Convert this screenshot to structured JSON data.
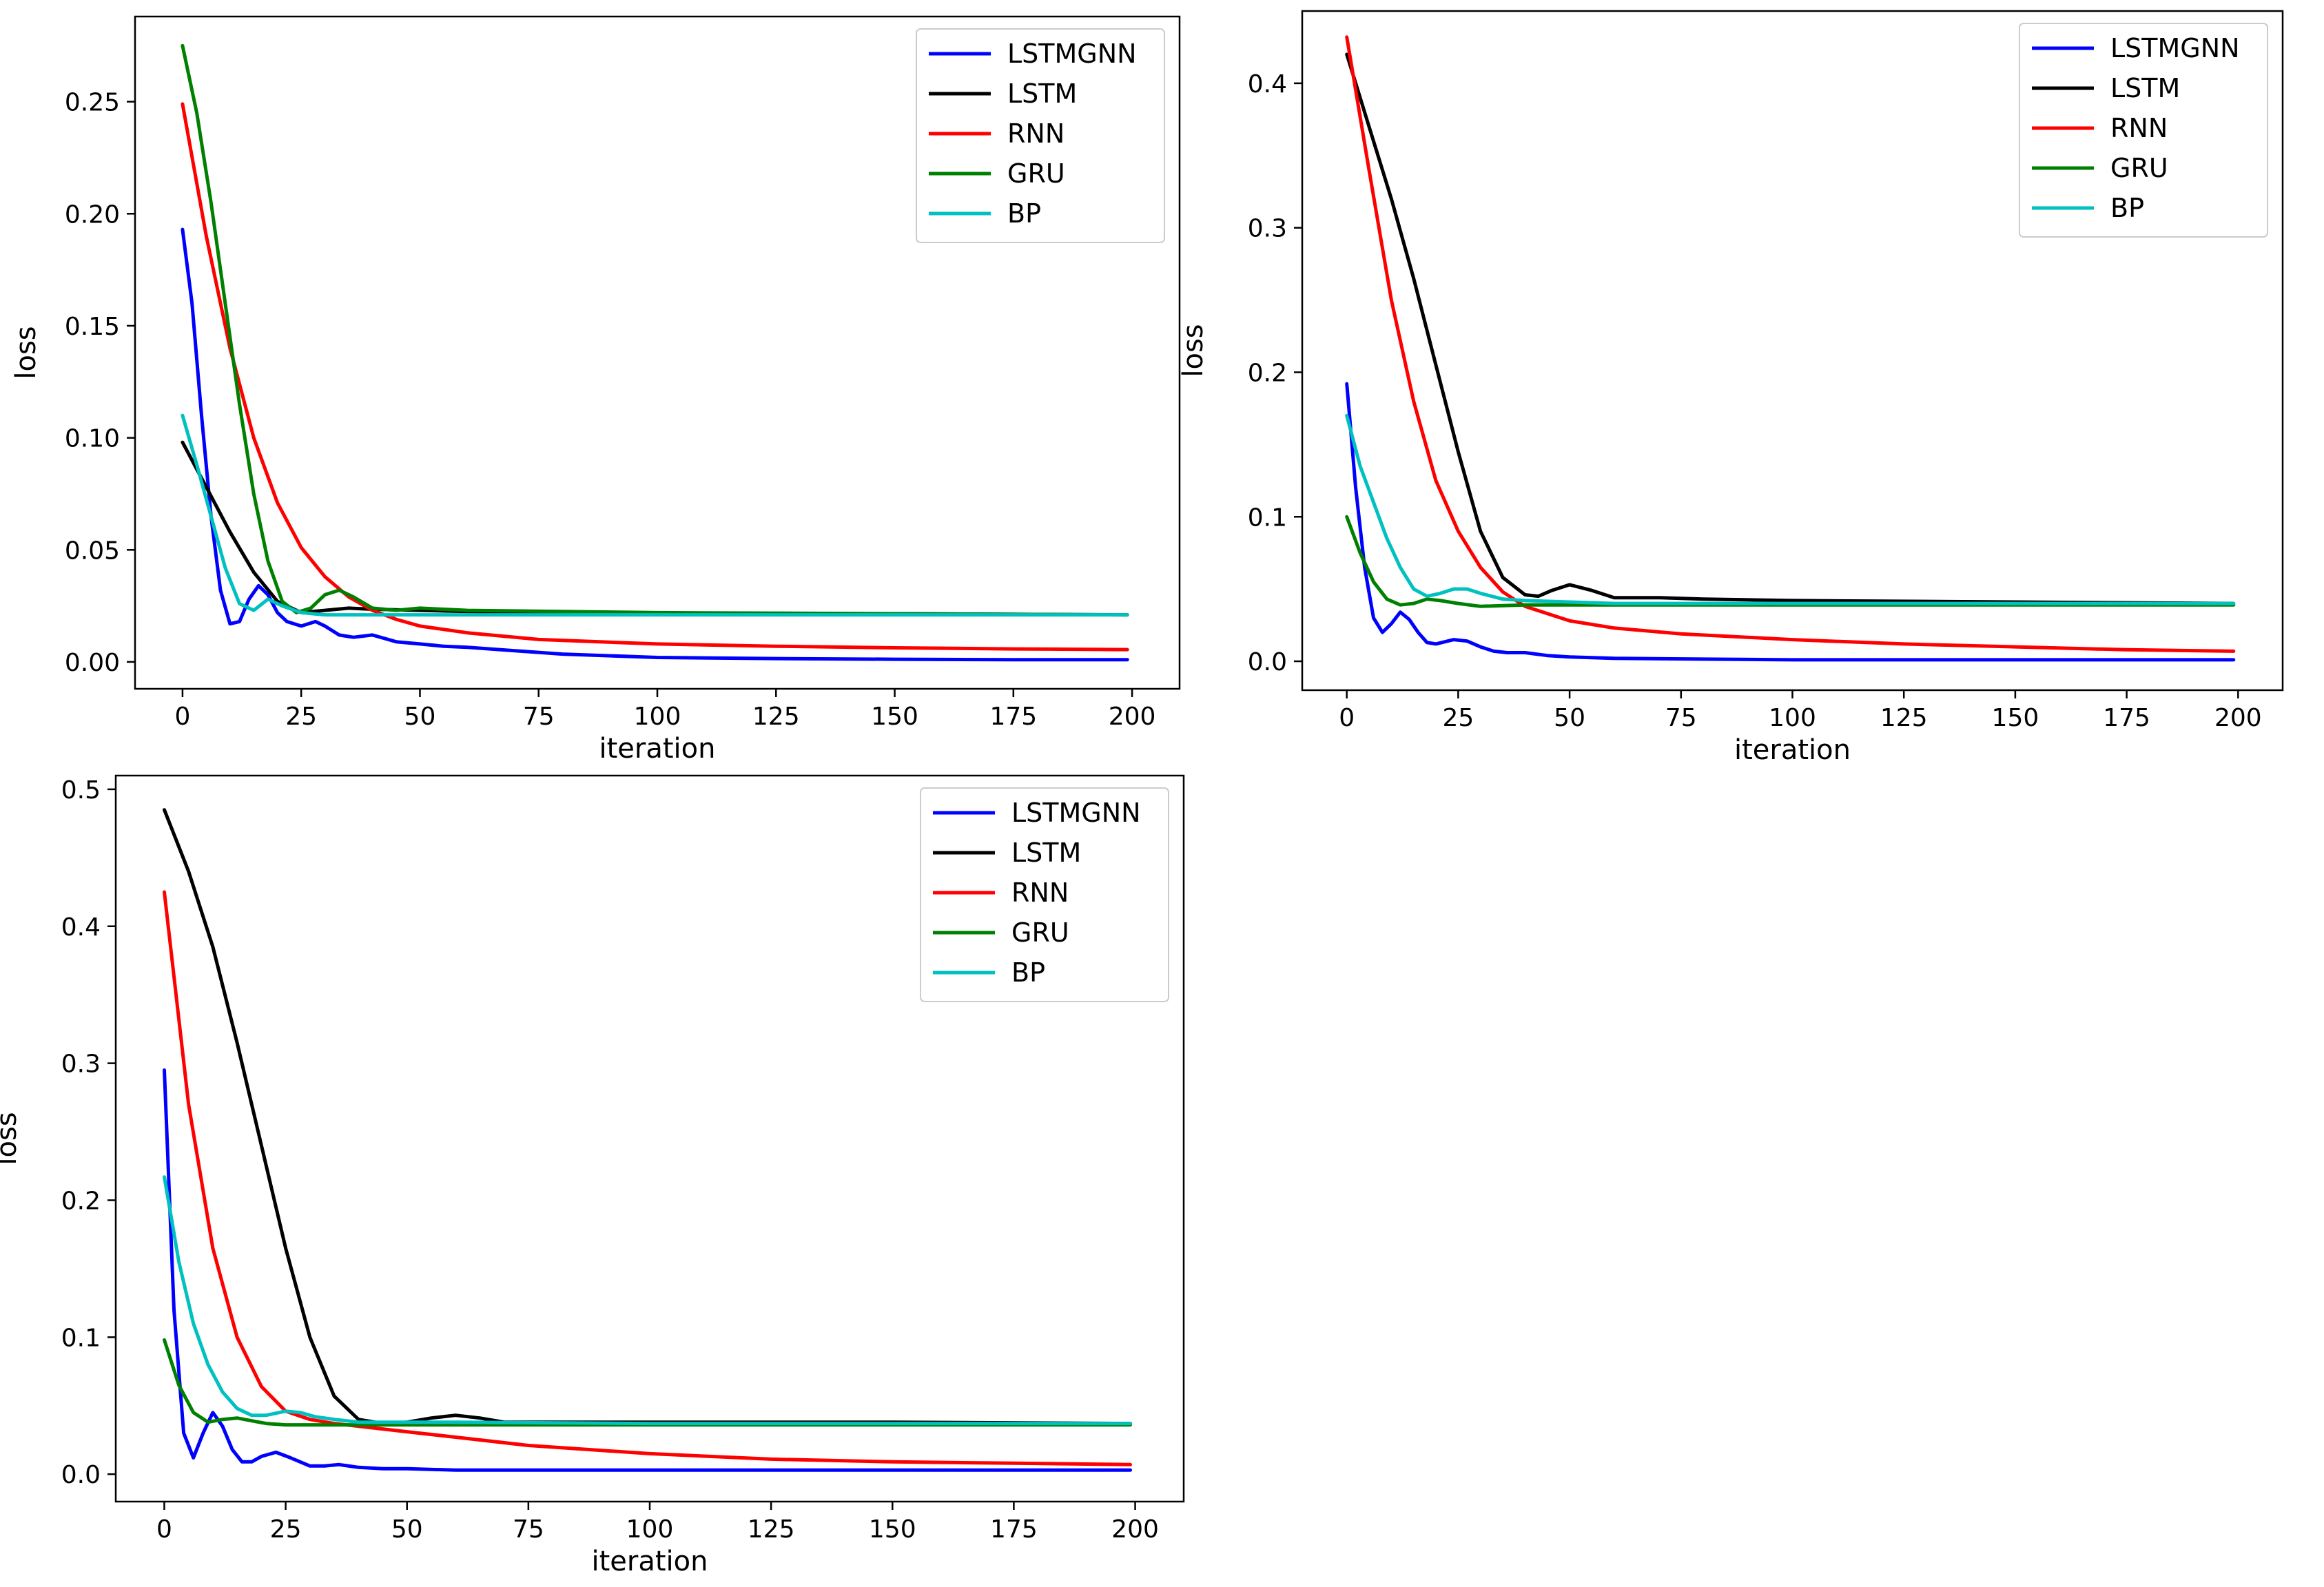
{
  "chart_data": [
    {
      "type": "line",
      "xlabel": "iteration",
      "ylabel": "loss",
      "xlim": [
        -10,
        210
      ],
      "ylim": [
        -0.012,
        0.288
      ],
      "xticks": [
        0,
        25,
        50,
        75,
        100,
        125,
        150,
        175,
        200
      ],
      "yticks": [
        0.0,
        0.05,
        0.1,
        0.15,
        0.2,
        0.25
      ],
      "ytick_labels": [
        "0.00",
        "0.05",
        "0.10",
        "0.15",
        "0.20",
        "0.25"
      ],
      "legend_position": "top-right",
      "series": [
        {
          "name": "LSTMGNN",
          "color": "#0000ff",
          "x": [
            0,
            2,
            4,
            6,
            8,
            10,
            12,
            14,
            16,
            18,
            20,
            22,
            25,
            28,
            30,
            33,
            36,
            40,
            45,
            50,
            55,
            60,
            70,
            80,
            100,
            125,
            150,
            175,
            199
          ],
          "y": [
            0.193,
            0.16,
            0.11,
            0.065,
            0.032,
            0.017,
            0.018,
            0.028,
            0.034,
            0.03,
            0.022,
            0.018,
            0.016,
            0.018,
            0.016,
            0.012,
            0.011,
            0.012,
            0.009,
            0.008,
            0.007,
            0.0065,
            0.005,
            0.0035,
            0.002,
            0.0015,
            0.0012,
            0.001,
            0.001
          ]
        },
        {
          "name": "LSTM",
          "color": "#000000",
          "x": [
            0,
            5,
            10,
            15,
            20,
            25,
            30,
            35,
            40,
            50,
            60,
            80,
            100,
            150,
            199
          ],
          "y": [
            0.098,
            0.078,
            0.058,
            0.04,
            0.027,
            0.022,
            0.023,
            0.024,
            0.0235,
            0.023,
            0.0225,
            0.022,
            0.0215,
            0.0215,
            0.021
          ]
        },
        {
          "name": "RNN",
          "color": "#ff0000",
          "x": [
            0,
            5,
            10,
            15,
            20,
            25,
            30,
            35,
            40,
            45,
            50,
            60,
            75,
            100,
            125,
            150,
            175,
            199
          ],
          "y": [
            0.249,
            0.19,
            0.14,
            0.1,
            0.071,
            0.051,
            0.038,
            0.029,
            0.023,
            0.019,
            0.016,
            0.013,
            0.01,
            0.008,
            0.007,
            0.0063,
            0.0058,
            0.0055
          ]
        },
        {
          "name": "GRU",
          "color": "#008000",
          "x": [
            0,
            3,
            6,
            9,
            12,
            15,
            18,
            21,
            24,
            27,
            30,
            33,
            36,
            40,
            45,
            50,
            55,
            60,
            80,
            100,
            150,
            199
          ],
          "y": [
            0.275,
            0.245,
            0.205,
            0.16,
            0.115,
            0.075,
            0.045,
            0.027,
            0.022,
            0.024,
            0.03,
            0.032,
            0.029,
            0.024,
            0.023,
            0.024,
            0.0235,
            0.023,
            0.0225,
            0.022,
            0.0215,
            0.021
          ]
        },
        {
          "name": "BP",
          "color": "#00c0c0",
          "x": [
            0,
            3,
            6,
            9,
            12,
            15,
            18,
            21,
            25,
            30,
            40,
            60,
            100,
            150,
            199
          ],
          "y": [
            0.11,
            0.088,
            0.065,
            0.042,
            0.026,
            0.023,
            0.028,
            0.025,
            0.022,
            0.021,
            0.021,
            0.021,
            0.021,
            0.021,
            0.021
          ]
        }
      ]
    },
    {
      "type": "line",
      "xlabel": "iteration",
      "ylabel": "loss",
      "xlim": [
        -10,
        210
      ],
      "ylim": [
        -0.02,
        0.45
      ],
      "xticks": [
        0,
        25,
        50,
        75,
        100,
        125,
        150,
        175,
        200
      ],
      "yticks": [
        0.0,
        0.1,
        0.2,
        0.3,
        0.4
      ],
      "ytick_labels": [
        "0.0",
        "0.1",
        "0.2",
        "0.3",
        "0.4"
      ],
      "legend_position": "top-right",
      "series": [
        {
          "name": "LSTMGNN",
          "color": "#0000ff",
          "x": [
            0,
            2,
            4,
            6,
            8,
            10,
            12,
            14,
            16,
            18,
            20,
            24,
            27,
            30,
            33,
            36,
            40,
            45,
            50,
            60,
            80,
            100,
            150,
            199
          ],
          "y": [
            0.192,
            0.12,
            0.065,
            0.03,
            0.02,
            0.026,
            0.034,
            0.029,
            0.02,
            0.013,
            0.012,
            0.015,
            0.014,
            0.01,
            0.007,
            0.006,
            0.006,
            0.004,
            0.003,
            0.002,
            0.0015,
            0.001,
            0.001,
            0.001
          ]
        },
        {
          "name": "LSTM",
          "color": "#000000",
          "x": [
            0,
            5,
            10,
            15,
            20,
            25,
            30,
            35,
            40,
            43,
            46,
            50,
            55,
            60,
            70,
            80,
            100,
            150,
            199
          ],
          "y": [
            0.42,
            0.37,
            0.32,
            0.265,
            0.205,
            0.145,
            0.09,
            0.058,
            0.046,
            0.045,
            0.049,
            0.053,
            0.049,
            0.044,
            0.044,
            0.043,
            0.042,
            0.041,
            0.04
          ]
        },
        {
          "name": "RNN",
          "color": "#ff0000",
          "x": [
            0,
            5,
            10,
            15,
            20,
            25,
            30,
            35,
            40,
            50,
            60,
            75,
            100,
            125,
            150,
            175,
            199
          ],
          "y": [
            0.432,
            0.34,
            0.25,
            0.18,
            0.125,
            0.09,
            0.065,
            0.048,
            0.038,
            0.028,
            0.023,
            0.019,
            0.015,
            0.012,
            0.01,
            0.008,
            0.007
          ]
        },
        {
          "name": "GRU",
          "color": "#008000",
          "x": [
            0,
            3,
            6,
            9,
            12,
            15,
            18,
            21,
            25,
            30,
            40,
            60,
            100,
            150,
            199
          ],
          "y": [
            0.1,
            0.075,
            0.055,
            0.043,
            0.039,
            0.04,
            0.043,
            0.042,
            0.04,
            0.038,
            0.039,
            0.039,
            0.039,
            0.039,
            0.039
          ]
        },
        {
          "name": "BP",
          "color": "#00c0c0",
          "x": [
            0,
            3,
            6,
            9,
            12,
            15,
            18,
            21,
            24,
            27,
            30,
            35,
            40,
            50,
            60,
            100,
            150,
            199
          ],
          "y": [
            0.17,
            0.135,
            0.11,
            0.085,
            0.065,
            0.05,
            0.045,
            0.047,
            0.05,
            0.05,
            0.047,
            0.043,
            0.042,
            0.041,
            0.04,
            0.04,
            0.04,
            0.04
          ]
        }
      ]
    },
    {
      "type": "line",
      "xlabel": "iteration",
      "ylabel": "loss",
      "xlim": [
        -10,
        210
      ],
      "ylim": [
        -0.02,
        0.51
      ],
      "xticks": [
        0,
        25,
        50,
        75,
        100,
        125,
        150,
        175,
        200
      ],
      "yticks": [
        0.0,
        0.1,
        0.2,
        0.3,
        0.4,
        0.5
      ],
      "ytick_labels": [
        "0.0",
        "0.1",
        "0.2",
        "0.3",
        "0.4",
        "0.5"
      ],
      "legend_position": "top-right",
      "series": [
        {
          "name": "LSTMGNN",
          "color": "#0000ff",
          "x": [
            0,
            2,
            4,
            6,
            8,
            10,
            12,
            14,
            16,
            18,
            20,
            23,
            26,
            30,
            33,
            36,
            40,
            45,
            50,
            60,
            80,
            100,
            150,
            199
          ],
          "y": [
            0.295,
            0.12,
            0.03,
            0.012,
            0.03,
            0.045,
            0.035,
            0.018,
            0.009,
            0.009,
            0.013,
            0.016,
            0.012,
            0.006,
            0.006,
            0.007,
            0.005,
            0.004,
            0.004,
            0.003,
            0.003,
            0.003,
            0.003,
            0.003
          ]
        },
        {
          "name": "LSTM",
          "color": "#000000",
          "x": [
            0,
            5,
            10,
            15,
            20,
            25,
            30,
            35,
            40,
            45,
            50,
            55,
            60,
            65,
            70,
            80,
            100,
            150,
            199
          ],
          "y": [
            0.485,
            0.44,
            0.385,
            0.315,
            0.24,
            0.165,
            0.1,
            0.057,
            0.04,
            0.037,
            0.038,
            0.041,
            0.043,
            0.041,
            0.038,
            0.038,
            0.038,
            0.038,
            0.037
          ]
        },
        {
          "name": "RNN",
          "color": "#ff0000",
          "x": [
            0,
            5,
            10,
            15,
            20,
            25,
            30,
            35,
            40,
            50,
            60,
            75,
            100,
            125,
            150,
            175,
            199
          ],
          "y": [
            0.425,
            0.27,
            0.165,
            0.1,
            0.064,
            0.046,
            0.04,
            0.037,
            0.035,
            0.031,
            0.027,
            0.021,
            0.015,
            0.011,
            0.009,
            0.008,
            0.007
          ]
        },
        {
          "name": "GRU",
          "color": "#008000",
          "x": [
            0,
            3,
            6,
            9,
            12,
            15,
            18,
            21,
            25,
            30,
            40,
            60,
            100,
            150,
            199
          ],
          "y": [
            0.098,
            0.065,
            0.045,
            0.038,
            0.04,
            0.041,
            0.039,
            0.037,
            0.036,
            0.036,
            0.036,
            0.036,
            0.036,
            0.036,
            0.036
          ]
        },
        {
          "name": "BP",
          "color": "#00c0c0",
          "x": [
            0,
            3,
            6,
            9,
            12,
            15,
            18,
            21,
            25,
            28,
            31,
            35,
            40,
            50,
            60,
            100,
            150,
            199
          ],
          "y": [
            0.217,
            0.155,
            0.11,
            0.08,
            0.06,
            0.048,
            0.043,
            0.043,
            0.046,
            0.045,
            0.042,
            0.04,
            0.038,
            0.038,
            0.038,
            0.037,
            0.037,
            0.037
          ]
        }
      ]
    }
  ]
}
